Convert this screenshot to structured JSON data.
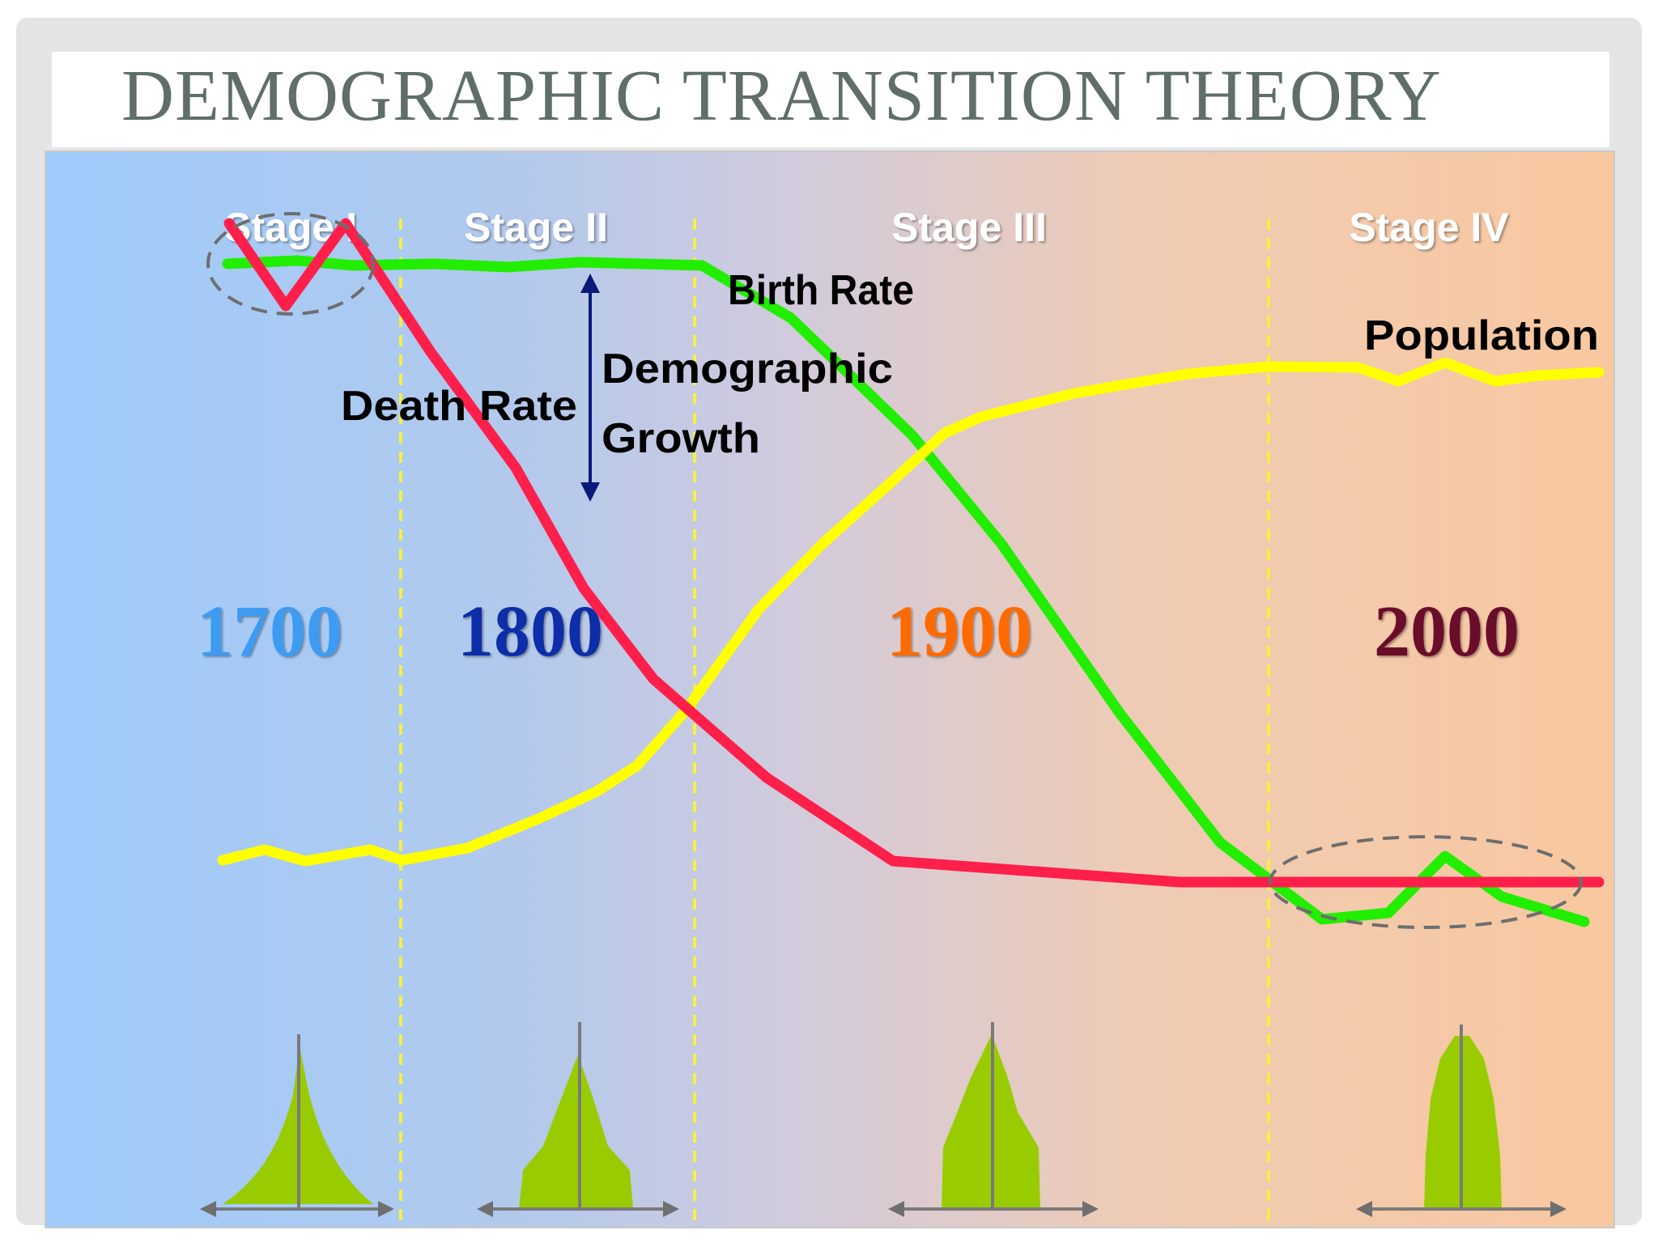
{
  "title": "DEMOGRAPHIC TRANSITION THEORY",
  "stages": [
    "Stage I",
    "Stage II",
    "Stage III",
    "Stage IV"
  ],
  "years": [
    "1700",
    "1800",
    "1900",
    "2000"
  ],
  "labels": {
    "birth_rate": "Birth Rate",
    "death_rate": "Death Rate",
    "population": "Population",
    "growth_line1": "Demographic",
    "growth_line2": "Growth"
  },
  "colors": {
    "birth_rate": "#22ee00",
    "death_rate": "#ff1f4b",
    "population": "#ffff00",
    "divider": "#f5f045",
    "year_1700": "#3d9bf2",
    "year_1800": "#0b2fa8",
    "year_1900": "#ff6a00",
    "year_2000": "#6b0a2c",
    "pyramid": "#99cc00",
    "background_left": "#9ecbfb",
    "background_right": "#f9c89f"
  },
  "icons": [
    "dashed-ellipse-stage-i",
    "dashed-ellipse-stage-iv",
    "double-arrow",
    "age-pyramid"
  ]
}
